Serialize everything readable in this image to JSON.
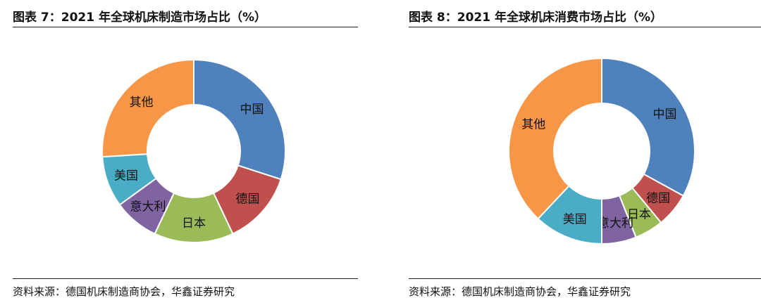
{
  "charts": [
    {
      "title": "图表 7：2021 年全球机床制造市场占比（%）",
      "source": "资料来源：德国机床制造商协会，华鑫证券研究",
      "chart_data": {
        "type": "pie",
        "categories": [
          "中国",
          "德国",
          "日本",
          "意大利",
          "美国",
          "其他"
        ],
        "values": [
          30,
          13,
          14,
          8,
          9,
          26
        ],
        "colors": [
          "#4f81bd",
          "#c0504d",
          "#9bbb59",
          "#8064a2",
          "#4bacc6",
          "#f79646"
        ]
      }
    },
    {
      "title": "图表 8：2021 年全球机床消费市场占比（%）",
      "source": "资料来源：德国机床制造商协会，华鑫证券研究",
      "chart_data": {
        "type": "pie",
        "categories": [
          "中国",
          "德国",
          "日本",
          "意大利",
          "美国",
          "其他"
        ],
        "values": [
          33,
          6,
          5,
          6,
          12,
          38
        ],
        "colors": [
          "#4f81bd",
          "#c0504d",
          "#9bbb59",
          "#8064a2",
          "#4bacc6",
          "#f79646"
        ]
      }
    }
  ]
}
